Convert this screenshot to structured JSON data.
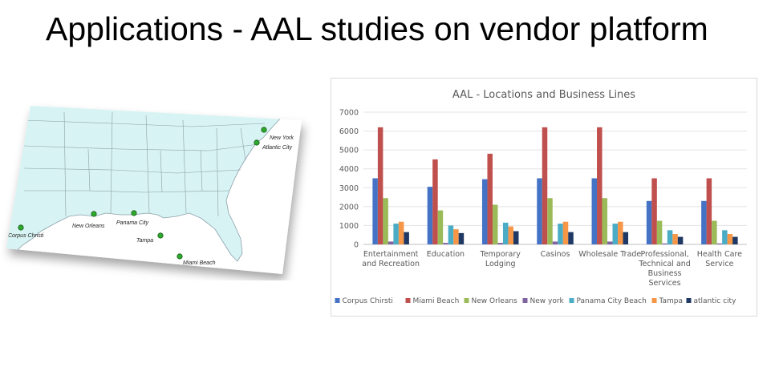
{
  "slide": {
    "title": "Applications - AAL studies on vendor platform"
  },
  "map": {
    "cities": [
      {
        "name": "New York"
      },
      {
        "name": "Atlantic City"
      },
      {
        "name": "New Orleans"
      },
      {
        "name": "Panama City"
      },
      {
        "name": "Tampa"
      },
      {
        "name": "Corpus Christi"
      },
      {
        "name": "Miami Beach"
      }
    ],
    "colors": {
      "land": "#d8f3f3",
      "water": "#ffffff",
      "marker": "#2ea82e",
      "border": "#8aa0aa"
    }
  },
  "chart_data": {
    "type": "bar",
    "title": "AAL - Locations and Business Lines",
    "xlabel": "",
    "ylabel": "",
    "ylim": [
      0,
      7000
    ],
    "yticks": [
      0,
      1000,
      2000,
      3000,
      4000,
      5000,
      6000,
      7000
    ],
    "grid": true,
    "legend_position": "bottom",
    "categories": [
      "Entertainment and Recreation",
      "Education",
      "Temporary Lodging",
      "Casinos",
      "Wholesale Trade",
      "Professional, Technical and Business Services",
      "Health Care Service"
    ],
    "series": [
      {
        "name": "Corpus Chirsti",
        "color": "#4472c4",
        "values": [
          3500,
          3050,
          3450,
          3500,
          3500,
          2300,
          2300
        ]
      },
      {
        "name": "Miami Beach",
        "color": "#c0504d",
        "values": [
          6200,
          4500,
          4800,
          6200,
          6200,
          3500,
          3500
        ]
      },
      {
        "name": "New Orleans",
        "color": "#9bbb59",
        "values": [
          2450,
          1800,
          2100,
          2450,
          2450,
          1250,
          1250
        ]
      },
      {
        "name": "New york",
        "color": "#8064a2",
        "values": [
          150,
          80,
          80,
          150,
          150,
          50,
          50
        ]
      },
      {
        "name": "Panama City Beach",
        "color": "#4bacc6",
        "values": [
          1100,
          1000,
          1150,
          1100,
          1100,
          750,
          750
        ]
      },
      {
        "name": "Tampa",
        "color": "#f79646",
        "values": [
          1200,
          800,
          950,
          1200,
          1200,
          550,
          550
        ]
      },
      {
        "name": "atlantic city",
        "color": "#1f3864",
        "values": [
          650,
          600,
          700,
          650,
          650,
          400,
          400
        ]
      }
    ]
  }
}
